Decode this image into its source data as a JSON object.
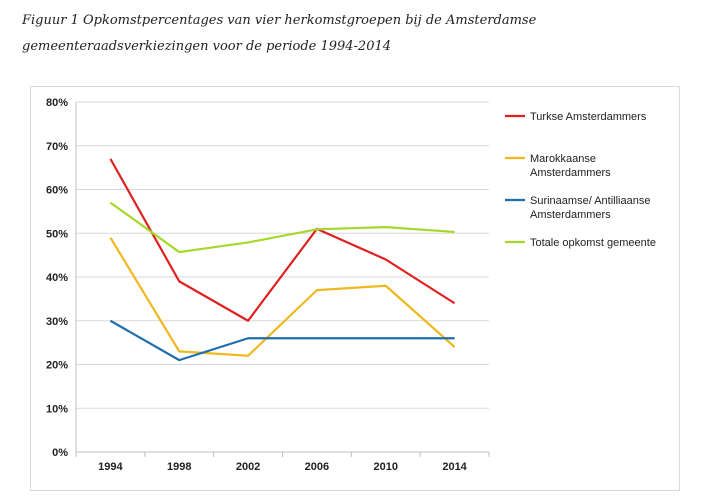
{
  "figure": {
    "caption": "Figuur 1 Opkomstpercentages van vier herkomstgroepen bij de Amsterdamse gemeenteraadsverkiezingen voor de periode 1994-2014"
  },
  "chart_data": {
    "type": "line",
    "title": "",
    "xlabel": "",
    "ylabel": "",
    "categories": [
      "1994",
      "1998",
      "2002",
      "2006",
      "2010",
      "2014"
    ],
    "ylim": [
      0,
      80
    ],
    "yticks": [
      "0%",
      "10%",
      "20%",
      "30%",
      "40%",
      "50%",
      "60%",
      "70%",
      "80%"
    ],
    "grid": true,
    "legend_position": "right",
    "series": [
      {
        "name": "Turkse Amsterdammers",
        "legend_lines": [
          "Turkse Amsterdammers"
        ],
        "color": "#e02020",
        "values": [
          67,
          39,
          30,
          51,
          44,
          34
        ]
      },
      {
        "name": "Marokkaanse Amsterdammers",
        "legend_lines": [
          "Marokkaanse",
          "Amsterdammers"
        ],
        "color": "#f0b820",
        "values": [
          49,
          23,
          22,
          37,
          38,
          24
        ]
      },
      {
        "name": "Surinaamse/ Antilliaanse Amsterdammers",
        "legend_lines": [
          "Surinaamse/ Antilliaanse",
          "Amsterdammers"
        ],
        "color": "#1f6fae",
        "values": [
          30,
          21,
          26,
          26,
          26,
          26
        ]
      },
      {
        "name": "Totale opkomst gemeente",
        "legend_lines": [
          "Totale opkomst gemeente"
        ],
        "color": "#a6d72a",
        "values": [
          57,
          45.7,
          47.9,
          50.9,
          51.4,
          50.3
        ]
      }
    ]
  }
}
